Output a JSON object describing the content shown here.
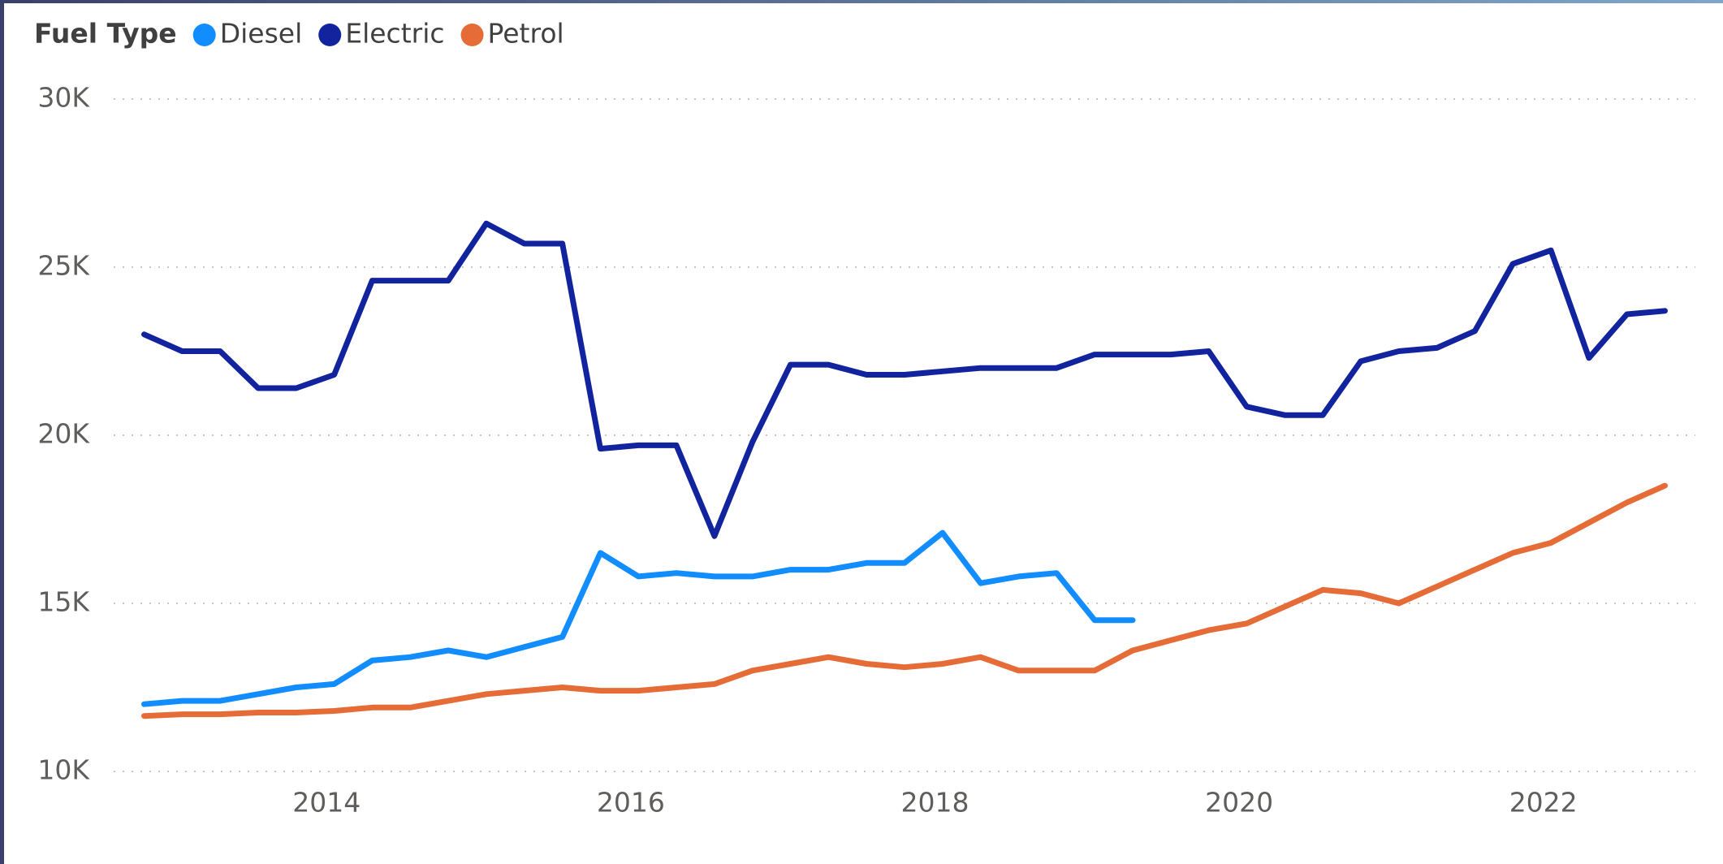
{
  "chart_data": {
    "type": "line",
    "legend_title": "Fuel Type",
    "x": [
      2012.8,
      2013.05,
      2013.3,
      2013.55,
      2013.8,
      2014.05,
      2014.3,
      2014.55,
      2014.8,
      2015.05,
      2015.3,
      2015.55,
      2015.8,
      2016.05,
      2016.3,
      2016.55,
      2016.8,
      2017.05,
      2017.3,
      2017.55,
      2017.8,
      2018.05,
      2018.3,
      2018.55,
      2018.8,
      2019.05,
      2019.3,
      2019.55,
      2019.8,
      2020.05,
      2020.3,
      2020.55,
      2020.8,
      2021.05,
      2021.3,
      2021.55,
      2021.8,
      2022.05,
      2022.3,
      2022.55,
      2022.8
    ],
    "series": [
      {
        "name": "Diesel",
        "color": "#118dff",
        "values": [
          12000,
          12100,
          12100,
          12300,
          12500,
          12600,
          13300,
          13400,
          13600,
          13400,
          13700,
          14000,
          16500,
          15800,
          15900,
          15800,
          15800,
          16000,
          16000,
          16200,
          16200,
          17100,
          15600,
          15800,
          15900,
          14500,
          14500,
          null,
          null,
          null,
          null,
          null,
          null,
          null,
          null,
          null,
          null,
          null,
          null,
          null,
          null
        ]
      },
      {
        "name": "Electric",
        "color": "#12239e",
        "values": [
          23000,
          22500,
          22500,
          21400,
          21400,
          21800,
          24600,
          24600,
          24600,
          26300,
          25700,
          25700,
          19600,
          19700,
          19700,
          17000,
          19800,
          22100,
          22100,
          21800,
          21800,
          21900,
          22000,
          22000,
          22000,
          22400,
          22400,
          22400,
          22500,
          20850,
          20600,
          20600,
          22200,
          22500,
          22600,
          23100,
          25100,
          25500,
          22300,
          23600,
          23700
        ]
      },
      {
        "name": "Petrol",
        "color": "#e66c37",
        "values": [
          11650,
          11700,
          11700,
          11750,
          11750,
          11800,
          11900,
          11900,
          12100,
          12300,
          12400,
          12500,
          12400,
          12400,
          12500,
          12600,
          13000,
          13200,
          13400,
          13200,
          13100,
          13200,
          13400,
          13000,
          13000,
          13000,
          13600,
          13900,
          14200,
          14400,
          14900,
          15400,
          15300,
          15000,
          15500,
          16000,
          16500,
          16800,
          17400,
          18000,
          18500
        ]
      }
    ],
    "xlim": [
      2012.6,
      2023.0
    ],
    "xticks": [
      2014,
      2016,
      2018,
      2020,
      2022
    ],
    "ylim": [
      10000,
      30000
    ],
    "yticks": [
      {
        "value": 10000,
        "label": "10K"
      },
      {
        "value": 15000,
        "label": "15K"
      },
      {
        "value": 20000,
        "label": "20K"
      },
      {
        "value": 25000,
        "label": "25K"
      },
      {
        "value": 30000,
        "label": "30K"
      }
    ],
    "grid": true
  }
}
